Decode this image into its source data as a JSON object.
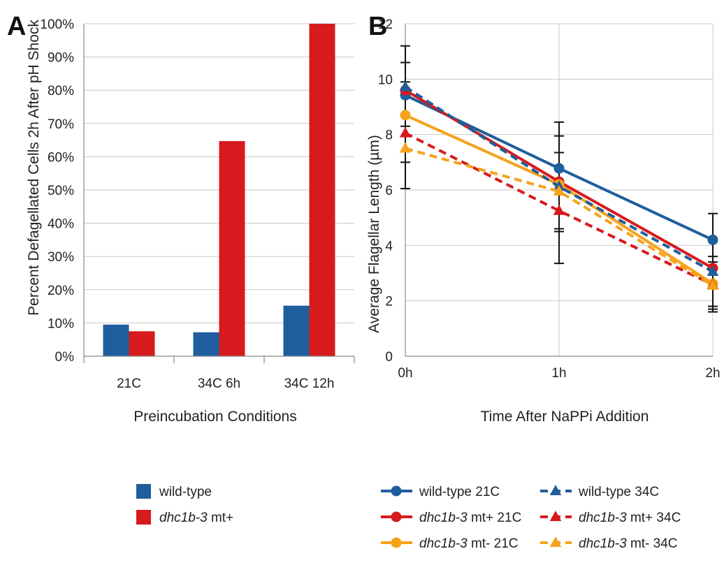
{
  "panels": {
    "a": "A",
    "b": "B"
  },
  "colors": {
    "wild_type": "#1f5e9c",
    "mt_plus": "#d71a1d",
    "mt_minus": "#f7a21b",
    "grid": "#c8c8c8",
    "axis": "#888888",
    "error_bar": "#111111"
  },
  "chart_data": [
    {
      "type": "bar",
      "panel": "A",
      "categories": [
        "21C",
        "34C 6h",
        "34C 12h"
      ],
      "series": [
        {
          "name": "wild-type",
          "name_prefix": "",
          "name_italic": "",
          "name_suffix": "wild-type",
          "color": "#1f5e9c",
          "values": [
            0.095,
            0.072,
            0.152
          ]
        },
        {
          "name": "dhc1b-3 mt+",
          "name_prefix": "",
          "name_italic": "dhc1b-3",
          "name_suffix": " mt+",
          "color": "#d71a1d",
          "values": [
            0.075,
            0.647,
            1.0
          ]
        }
      ],
      "xlabel": "Preincubation Conditions",
      "ylabel": "Percent Defagellated Cells 2h After pH Shock",
      "ylim": [
        0,
        1
      ],
      "yticks": [
        "0%",
        "10%",
        "20%",
        "30%",
        "40%",
        "50%",
        "60%",
        "70%",
        "80%",
        "90%",
        "100%"
      ],
      "grid": true,
      "legend": "bottom"
    },
    {
      "type": "line",
      "panel": "B",
      "x": [
        "0h",
        "1h",
        "2h"
      ],
      "series": [
        {
          "name": "wild-type 21C",
          "name_prefix": "",
          "name_italic": "",
          "name_suffix": "wild-type 21C",
          "color": "#1f5e9c",
          "dashed": false,
          "marker": "circle",
          "values": [
            9.42,
            6.78,
            4.2
          ],
          "errors": [
            0.0,
            0.0,
            0.95
          ]
        },
        {
          "name": "wild-type 34C",
          "name_prefix": "",
          "name_italic": "",
          "name_suffix": "wild-type 34C",
          "color": "#1f5e9c",
          "dashed": true,
          "marker": "triangle",
          "values": [
            9.72,
            6.12,
            3.05
          ],
          "errors": [
            0.0,
            0.0,
            0.0
          ]
        },
        {
          "name": "dhc1b-3 mt+ 21C",
          "name_prefix": "",
          "name_italic": "dhc1b-3",
          "name_suffix": " mt+ 21C",
          "color": "#d71a1d",
          "dashed": false,
          "marker": "circle",
          "values": [
            9.6,
            6.3,
            3.18
          ],
          "errors": [
            0.0,
            0.0,
            0.0
          ]
        },
        {
          "name": "dhc1b-3 mt+ 34C",
          "name_prefix": "",
          "name_italic": "dhc1b-3",
          "name_suffix": " mt+ 34C",
          "color": "#d71a1d",
          "dashed": true,
          "marker": "triangle",
          "values": [
            8.05,
            5.25,
            2.58
          ],
          "errors": [
            0.0,
            0.0,
            0.0
          ]
        },
        {
          "name": "dhc1b-3 mt- 21C",
          "name_prefix": "",
          "name_italic": "dhc1b-3",
          "name_suffix": " mt- 21C",
          "color": "#f7a21b",
          "dashed": false,
          "marker": "circle",
          "values": [
            8.7,
            6.2,
            2.62
          ],
          "errors": [
            0.0,
            0.0,
            0.0
          ]
        },
        {
          "name": "dhc1b-3 mt- 34C",
          "name_prefix": "",
          "name_italic": "dhc1b-3",
          "name_suffix": " mt- 34C",
          "color": "#f7a21b",
          "dashed": true,
          "marker": "triangle",
          "values": [
            7.5,
            5.95,
            2.55
          ],
          "errors": [
            0.0,
            0.0,
            0.0
          ]
        }
      ],
      "error_bars": [
        {
          "x": "0h",
          "low": 6.05,
          "high": 11.2
        },
        {
          "x": "0h",
          "low": 7.0,
          "high": 10.6
        },
        {
          "x": "0h",
          "low": 8.3,
          "high": 9.9
        },
        {
          "x": "1h",
          "low": 3.35,
          "high": 8.45
        },
        {
          "x": "1h",
          "low": 4.6,
          "high": 7.95
        },
        {
          "x": "1h",
          "low": 4.5,
          "high": 7.35
        },
        {
          "x": "2h",
          "low": 1.6,
          "high": 5.15
        },
        {
          "x": "2h",
          "low": 1.7,
          "high": 3.6
        },
        {
          "x": "2h",
          "low": 1.8,
          "high": 3.4
        }
      ],
      "xlabel": "Time After NaPPi Addition",
      "ylabel": "Average Flagellar Length (µm)",
      "ylim": [
        0,
        12
      ],
      "yticks": [
        "0",
        "2",
        "4",
        "6",
        "8",
        "10",
        "12"
      ],
      "grid": true,
      "legend": "bottom"
    }
  ]
}
